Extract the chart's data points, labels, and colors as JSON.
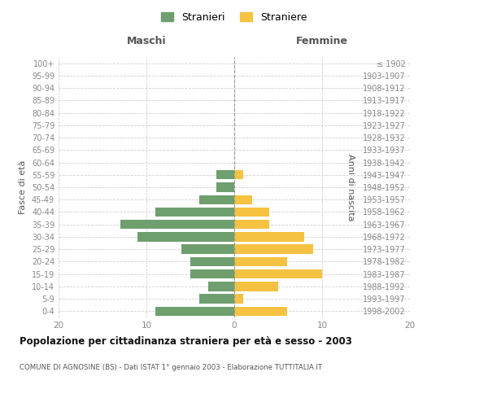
{
  "age_groups": [
    "0-4",
    "5-9",
    "10-14",
    "15-19",
    "20-24",
    "25-29",
    "30-34",
    "35-39",
    "40-44",
    "45-49",
    "50-54",
    "55-59",
    "60-64",
    "65-69",
    "70-74",
    "75-79",
    "80-84",
    "85-89",
    "90-94",
    "95-99",
    "100+"
  ],
  "birth_years": [
    "1998-2002",
    "1993-1997",
    "1988-1992",
    "1983-1987",
    "1978-1982",
    "1973-1977",
    "1968-1972",
    "1963-1967",
    "1958-1962",
    "1953-1957",
    "1948-1952",
    "1943-1947",
    "1938-1942",
    "1933-1937",
    "1928-1932",
    "1923-1927",
    "1918-1922",
    "1913-1917",
    "1908-1912",
    "1903-1907",
    "≤ 1902"
  ],
  "males": [
    9,
    4,
    3,
    5,
    5,
    6,
    11,
    13,
    9,
    4,
    2,
    2,
    0,
    0,
    0,
    0,
    0,
    0,
    0,
    0,
    0
  ],
  "females": [
    6,
    1,
    5,
    10,
    6,
    9,
    8,
    4,
    4,
    2,
    0,
    1,
    0,
    0,
    0,
    0,
    0,
    0,
    0,
    0,
    0
  ],
  "male_color": "#6f9e6f",
  "female_color": "#f5c242",
  "title": "Popolazione per cittadinanza straniera per età e sesso - 2003",
  "subtitle": "COMUNE DI AGNOSINE (BS) - Dati ISTAT 1° gennaio 2003 - Elaborazione TUTTITALIA.IT",
  "xlabel_left": "Maschi",
  "xlabel_right": "Femmine",
  "ylabel_left": "Fasce di età",
  "ylabel_right": "Anni di nascita",
  "legend_male": "Stranieri",
  "legend_female": "Straniere",
  "xlim": 20,
  "background_color": "#ffffff",
  "grid_color": "#d0d0d0"
}
